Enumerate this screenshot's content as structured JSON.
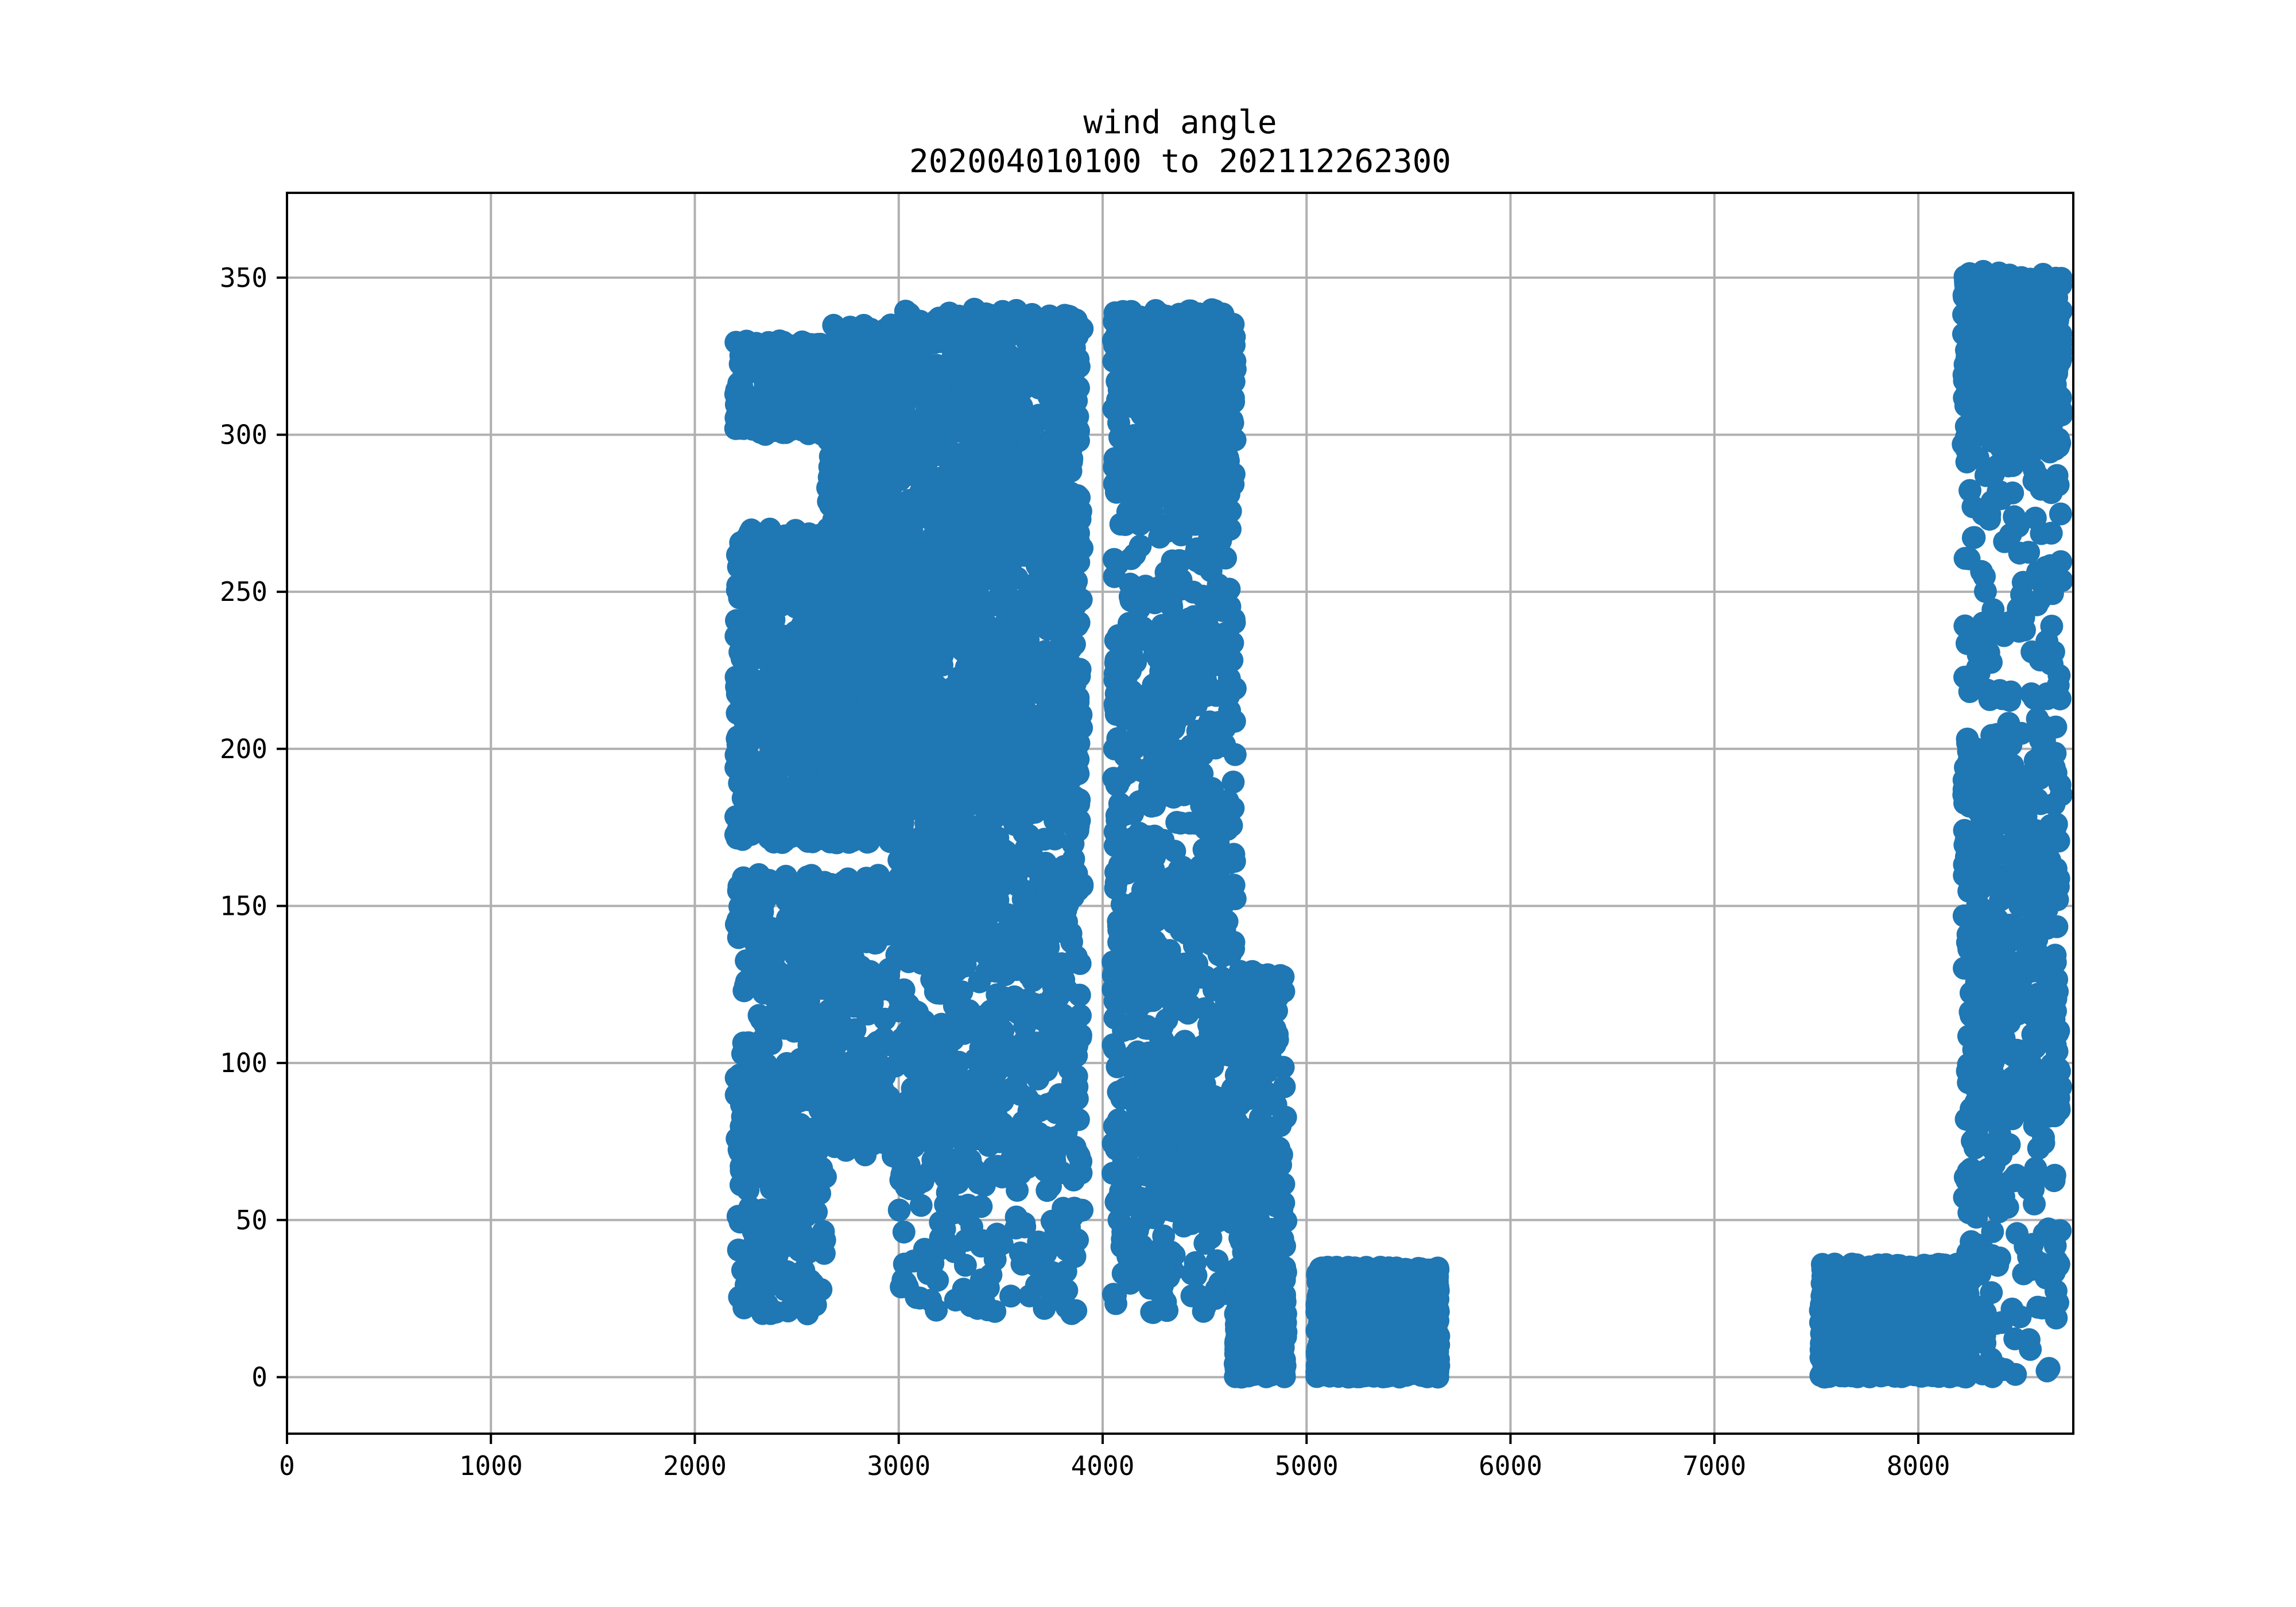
{
  "chart_data": {
    "type": "scatter",
    "title": "wind angle",
    "subtitle": "202004010100 to 202112262300",
    "xlabel": "",
    "ylabel": "",
    "xlim": [
      0,
      8760
    ],
    "ylim": [
      -18,
      377
    ],
    "xticks": [
      0,
      1000,
      2000,
      3000,
      4000,
      5000,
      6000,
      7000,
      8000
    ],
    "yticks": [
      0,
      50,
      100,
      150,
      200,
      250,
      300,
      350
    ],
    "grid": true,
    "marker_color": "#1f77b4",
    "clusters": [
      {
        "x_range": [
          2200,
          2650
        ],
        "density": 2.4,
        "bands": [
          [
            300,
            330,
            0.22
          ],
          [
            170,
            270,
            0.45
          ],
          [
            60,
            160,
            0.25
          ],
          [
            20,
            60,
            0.08
          ]
        ]
      },
      {
        "x_range": [
          2650,
          3000
        ],
        "density": 2.6,
        "bands": [
          [
            250,
            335,
            0.35
          ],
          [
            170,
            250,
            0.4
          ],
          [
            70,
            160,
            0.25
          ]
        ]
      },
      {
        "x_range": [
          3000,
          3900
        ],
        "density": 2.2,
        "bands": [
          [
            280,
            340,
            0.25
          ],
          [
            180,
            280,
            0.4
          ],
          [
            60,
            180,
            0.3
          ],
          [
            20,
            60,
            0.05
          ]
        ]
      },
      {
        "x_range": [
          4050,
          4650
        ],
        "density": 2.0,
        "bands": [
          [
            280,
            340,
            0.3
          ],
          [
            170,
            280,
            0.3
          ],
          [
            50,
            170,
            0.35
          ],
          [
            20,
            50,
            0.05
          ]
        ]
      },
      {
        "x_range": [
          4650,
          4900
        ],
        "density": 3.0,
        "bands": [
          [
            0,
            35,
            0.75
          ],
          [
            35,
            130,
            0.25
          ]
        ]
      },
      {
        "x_range": [
          5050,
          5650
        ],
        "density": 2.0,
        "bands": [
          [
            0,
            35,
            1.0
          ]
        ]
      },
      {
        "x_range": [
          7520,
          8250
        ],
        "density": 1.4,
        "bands": [
          [
            0,
            36,
            1.0
          ]
        ]
      },
      {
        "x_range": [
          8220,
          8760
        ],
        "density": 2.8,
        "bands": [
          [
            295,
            352,
            0.5
          ],
          [
            200,
            295,
            0.1
          ],
          [
            80,
            200,
            0.32
          ],
          [
            0,
            80,
            0.08
          ]
        ]
      }
    ]
  }
}
